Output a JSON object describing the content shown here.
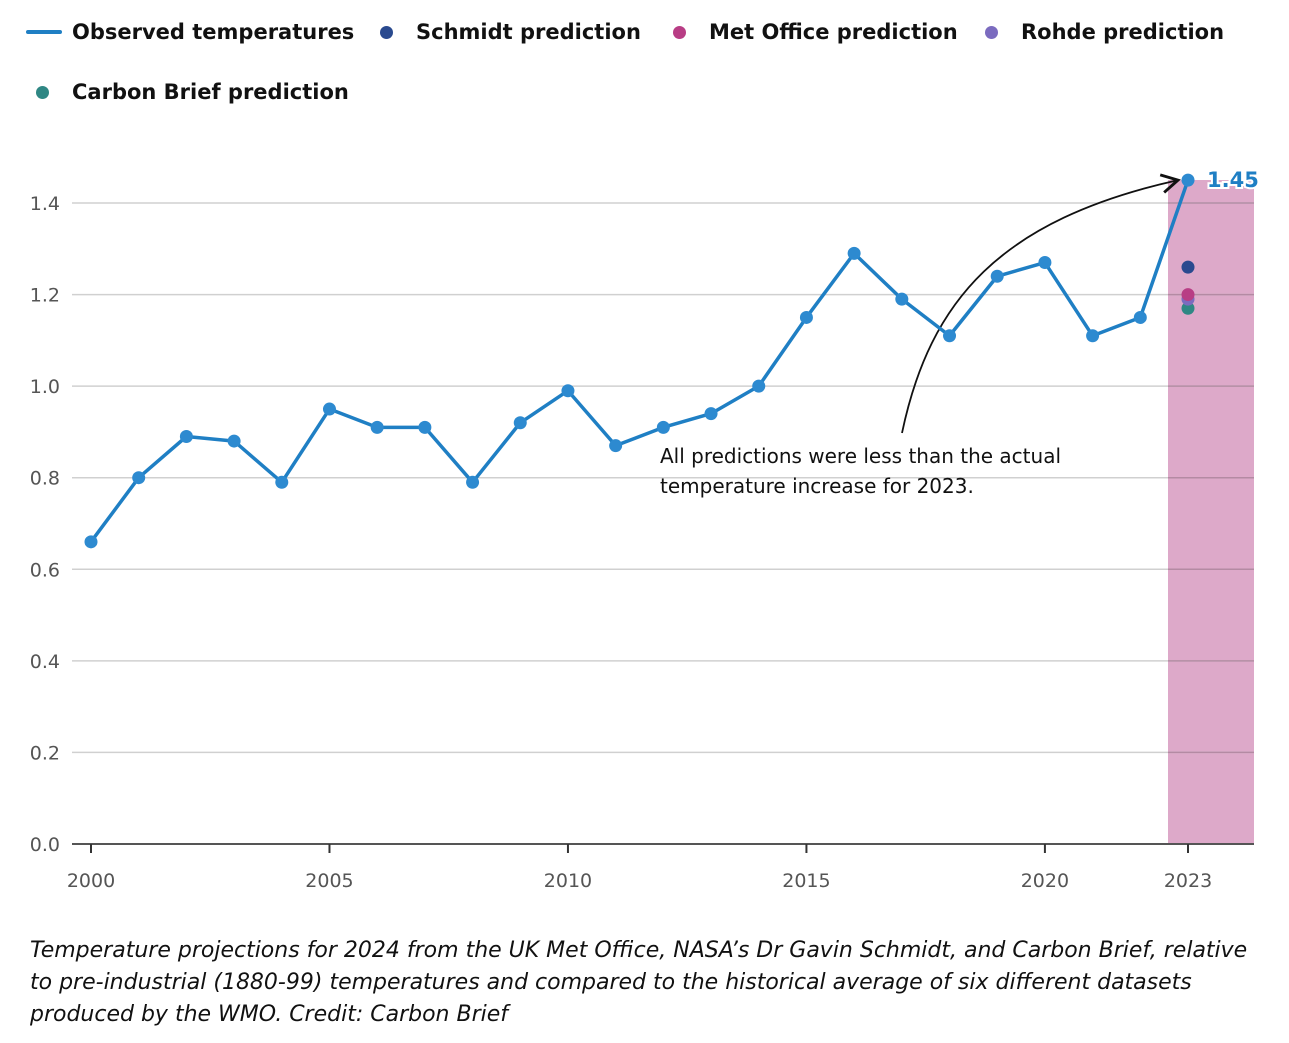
{
  "chart_data": {
    "type": "line",
    "title": "",
    "xlabel": "",
    "ylabel": "",
    "xlim": [
      2000,
      2023
    ],
    "ylim": [
      0,
      1.4
    ],
    "grid": true,
    "legend_position": "top-left",
    "x_ticks": [
      2000,
      2005,
      2010,
      2015,
      2020,
      2023
    ],
    "x_tick_labels": [
      "2000",
      "2005",
      "2010",
      "2015",
      "2020",
      "2023"
    ],
    "y_ticks": [
      0.0,
      0.2,
      0.4,
      0.6,
      0.8,
      1.0,
      1.2,
      1.4
    ],
    "y_tick_labels": [
      "0.0",
      "0.2",
      "0.4",
      "0.6",
      "0.8",
      "1.0",
      "1.2",
      "1.4"
    ],
    "series": [
      {
        "name": "Observed temperatures",
        "kind": "line",
        "color": "#1f7fc4",
        "x": [
          2000,
          2001,
          2002,
          2003,
          2004,
          2005,
          2006,
          2007,
          2008,
          2009,
          2010,
          2011,
          2012,
          2013,
          2014,
          2015,
          2016,
          2017,
          2018,
          2019,
          2020,
          2021,
          2022,
          2023
        ],
        "values": [
          0.66,
          0.8,
          0.89,
          0.88,
          0.79,
          0.95,
          0.91,
          0.91,
          0.79,
          0.92,
          0.99,
          0.87,
          0.91,
          0.94,
          1.0,
          1.15,
          1.29,
          1.19,
          1.11,
          1.24,
          1.27,
          1.11,
          1.15,
          1.45
        ]
      },
      {
        "name": "Schmidt prediction",
        "kind": "point",
        "color": "#2a4a8f",
        "x": [
          2023
        ],
        "values": [
          1.26
        ]
      },
      {
        "name": "Met Office prediction",
        "kind": "point",
        "color": "#b83d85",
        "x": [
          2023
        ],
        "values": [
          1.2
        ]
      },
      {
        "name": "Rohde prediction",
        "kind": "point",
        "color": "#7b6bbf",
        "x": [
          2023
        ],
        "values": [
          1.19
        ]
      },
      {
        "name": "Carbon Brief prediction",
        "kind": "point",
        "color": "#2f8784",
        "x": [
          2023
        ],
        "values": [
          1.17
        ]
      }
    ],
    "highlight_band": {
      "x": 2023,
      "color": "#dda9c9"
    },
    "data_labels": [
      {
        "x": 2023,
        "value": 1.45,
        "text": "1.45"
      }
    ],
    "annotations": [
      {
        "lines": [
          "All predictions were less than the actual",
          "temperature increase for 2023."
        ],
        "points_to": {
          "x": 2023,
          "value": 1.45
        }
      }
    ]
  },
  "legend": {
    "items": [
      {
        "label": "Observed temperatures",
        "marker": "line",
        "color": "#1f7fc4"
      },
      {
        "label": "Schmidt prediction",
        "marker": "dot",
        "color": "#2a4a8f"
      },
      {
        "label": "Met Office prediction",
        "marker": "dot",
        "color": "#b83d85"
      },
      {
        "label": "Rohde prediction",
        "marker": "dot",
        "color": "#7b6bbf"
      },
      {
        "label": "Carbon Brief prediction",
        "marker": "dot",
        "color": "#2f8784"
      }
    ]
  },
  "caption": "Temperature projections for 2024 from the UK Met Office, NASA’s Dr Gavin Schmidt, and Carbon Brief, relative to pre-industrial (1880-99) temperatures and compared to the historical average of six different datasets produced by the WMO. Credit: Carbon Brief"
}
